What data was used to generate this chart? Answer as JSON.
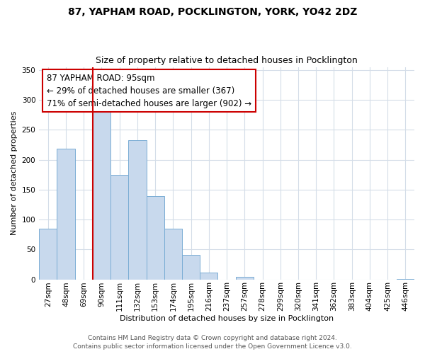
{
  "title": "87, YAPHAM ROAD, POCKLINGTON, YORK, YO42 2DZ",
  "subtitle": "Size of property relative to detached houses in Pocklington",
  "xlabel": "Distribution of detached houses by size in Pocklington",
  "ylabel": "Number of detached properties",
  "bar_labels": [
    "27sqm",
    "48sqm",
    "69sqm",
    "90sqm",
    "111sqm",
    "132sqm",
    "153sqm",
    "174sqm",
    "195sqm",
    "216sqm",
    "237sqm",
    "257sqm",
    "278sqm",
    "299sqm",
    "320sqm",
    "341sqm",
    "362sqm",
    "383sqm",
    "404sqm",
    "425sqm",
    "446sqm"
  ],
  "bar_values": [
    85,
    218,
    0,
    283,
    175,
    232,
    139,
    85,
    41,
    11,
    0,
    4,
    0,
    0,
    0,
    0,
    0,
    0,
    0,
    0,
    1
  ],
  "bar_color": "#c8d9ed",
  "bar_edge_color": "#7aadd4",
  "vline_x_index": 3,
  "vline_color": "#cc0000",
  "annotation_line1": "87 YAPHAM ROAD: 95sqm",
  "annotation_line2": "← 29% of detached houses are smaller (367)",
  "annotation_line3": "71% of semi-detached houses are larger (902) →",
  "annotation_box_color": "#ffffff",
  "annotation_box_edge": "#cc0000",
  "ylim": [
    0,
    355
  ],
  "yticks": [
    0,
    50,
    100,
    150,
    200,
    250,
    300,
    350
  ],
  "footnote1": "Contains HM Land Registry data © Crown copyright and database right 2024.",
  "footnote2": "Contains public sector information licensed under the Open Government Licence v3.0.",
  "bg_color": "#ffffff",
  "grid_color": "#d4dde8",
  "title_fontsize": 10,
  "subtitle_fontsize": 9,
  "axis_label_fontsize": 8,
  "tick_fontsize": 7.5,
  "footnote_fontsize": 6.5
}
